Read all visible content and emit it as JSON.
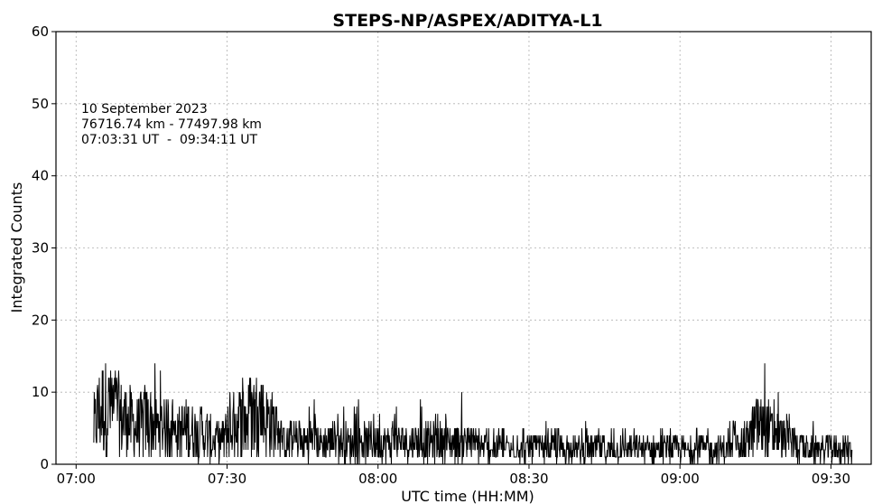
{
  "chart_data": {
    "type": "line",
    "title": "STEPS-NP/ASPEX/ADITYA-L1",
    "xlabel": "UTC time (HH:MM)",
    "ylabel": "Integrated Counts",
    "xlim": [
      "06:56",
      "09:38"
    ],
    "ylim": [
      0,
      60
    ],
    "x_ticks": [
      "07:00",
      "07:30",
      "08:00",
      "08:30",
      "09:00",
      "09:30"
    ],
    "y_ticks": [
      0,
      10,
      20,
      30,
      40,
      50,
      60
    ],
    "grid": true,
    "annotation": [
      "10 September 2023",
      "76716.74 km - 77497.98 km",
      "07:03:31 UT  -  09:34:11 UT"
    ],
    "series": [
      {
        "color": "#000000",
        "x": [
          "07:03:31",
          "07:05",
          "07:08",
          "07:10",
          "07:12",
          "07:14",
          "07:16",
          "07:18",
          "07:20",
          "07:22",
          "07:25",
          "07:28",
          "07:30",
          "07:32",
          "07:34",
          "07:36",
          "07:38",
          "07:40",
          "07:41",
          "07:44",
          "07:48",
          "07:52",
          "07:56",
          "08:00",
          "08:03",
          "08:06",
          "08:10",
          "08:14",
          "08:17",
          "08:18",
          "08:22",
          "08:26",
          "08:30",
          "08:34",
          "08:38",
          "08:42",
          "08:46",
          "08:50",
          "08:54",
          "08:58",
          "09:02",
          "09:06",
          "09:10",
          "09:13",
          "09:15",
          "09:17",
          "09:19",
          "09:22",
          "09:25",
          "09:28",
          "09:31",
          "09:34:11"
        ],
        "y": [
          5,
          8,
          7,
          6,
          5,
          6,
          5,
          5,
          4,
          5,
          4,
          3,
          4,
          6,
          6,
          7,
          6,
          5,
          3,
          3,
          3,
          3,
          3,
          3,
          3,
          3,
          3,
          3,
          3,
          3,
          2,
          2,
          2,
          2,
          2,
          2,
          2,
          2,
          2,
          2,
          2,
          2,
          2,
          3,
          5,
          5,
          4,
          3,
          2,
          2,
          2,
          2
        ],
        "spike_max": [
          10,
          18,
          13,
          11,
          14,
          11,
          15,
          10,
          11,
          9,
          9,
          8,
          12,
          13,
          13,
          13,
          12,
          8,
          6,
          8,
          10,
          9,
          9,
          9,
          13,
          10,
          9,
          8,
          10,
          7,
          6,
          6,
          5,
          6,
          6,
          6,
          6,
          5,
          5,
          6,
          6,
          6,
          6,
          7,
          10,
          15,
          12,
          8,
          6,
          6,
          5,
          5
        ]
      }
    ]
  }
}
